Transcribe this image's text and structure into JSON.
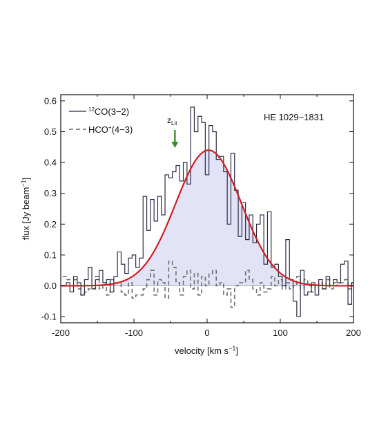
{
  "chart_data": {
    "type": "line",
    "object_label": "HE 1029−1831",
    "xlabel": "velocity [km s",
    "xlabel_sup": "−1",
    "xlabel_end": "]",
    "ylabel": "flux [Jy beam",
    "ylabel_sup": "−1",
    "ylabel_end": "]",
    "xlim": [
      -200,
      200
    ],
    "ylim": [
      -0.12,
      0.62
    ],
    "x_ticks": [
      -200,
      -100,
      0,
      100,
      200
    ],
    "x_tick_labels": [
      "-200",
      "-100",
      "0",
      "100",
      "200"
    ],
    "y_ticks": [
      -0.1,
      0.0,
      0.1,
      0.2,
      0.3,
      0.4,
      0.5,
      0.6
    ],
    "y_tick_labels": [
      "-0.1",
      "0.0",
      "0.1",
      "0.2",
      "0.3",
      "0.4",
      "0.5",
      "0.6"
    ],
    "legend": {
      "placement": "top-left",
      "co_label_sup": "12",
      "co_label": "CO(3−2)",
      "hco_label": "HCO",
      "hco_label_sup": "+",
      "hco_label_end": "(4−3)"
    },
    "annotation": {
      "label": "z",
      "label_sub": "Lit",
      "x": -44,
      "color": "#3d8b2f"
    },
    "colors": {
      "co": "#2a2a45",
      "hco": "#6e6e6e",
      "fit": "#cc1f1f",
      "fill": "#e2e3f6"
    },
    "series": [
      {
        "name": "12CO(3-2)",
        "style": "step-solid",
        "x": [
          -195,
          -190,
          -185,
          -180,
          -175,
          -170,
          -165,
          -160,
          -155,
          -150,
          -145,
          -140,
          -135,
          -130,
          -125,
          -120,
          -115,
          -110,
          -105,
          -100,
          -95,
          -90,
          -85,
          -80,
          -75,
          -70,
          -65,
          -60,
          -55,
          -50,
          -45,
          -40,
          -35,
          -30,
          -25,
          -20,
          -15,
          -10,
          -5,
          0,
          5,
          10,
          15,
          20,
          25,
          30,
          35,
          40,
          45,
          50,
          55,
          60,
          65,
          70,
          75,
          80,
          85,
          90,
          95,
          100,
          105,
          110,
          115,
          120,
          125,
          130,
          135,
          140,
          145,
          150,
          155,
          160,
          165,
          170,
          175,
          180,
          185,
          190,
          195,
          200
        ],
        "y": [
          0.0,
          0.01,
          -0.02,
          0.03,
          0.01,
          -0.03,
          0.02,
          0.06,
          -0.01,
          0.02,
          0.05,
          0.01,
          0.02,
          -0.02,
          0.03,
          0.11,
          0.07,
          0.04,
          0.09,
          0.1,
          0.06,
          0.09,
          0.29,
          0.18,
          0.28,
          0.21,
          0.29,
          0.23,
          0.36,
          0.35,
          0.37,
          0.39,
          0.34,
          0.4,
          0.33,
          0.58,
          0.5,
          0.55,
          0.53,
          0.36,
          0.52,
          0.5,
          0.41,
          0.42,
          0.37,
          0.2,
          0.43,
          0.31,
          0.16,
          0.27,
          0.15,
          0.23,
          0.14,
          0.2,
          0.23,
          0.07,
          0.24,
          0.06,
          0.07,
          0.03,
          0.0,
          0.15,
          0.02,
          -0.05,
          -0.1,
          0.05,
          -0.03,
          -0.02,
          0.01,
          -0.03,
          0.02,
          -0.01,
          0.03,
          0.0,
          0.02,
          0.01,
          0.07,
          0.08,
          -0.06,
          0.01
        ]
      },
      {
        "name": "HCO+(4-3)",
        "style": "step-dashed",
        "x": [
          -195,
          -190,
          -185,
          -180,
          -175,
          -170,
          -165,
          -160,
          -155,
          -150,
          -145,
          -140,
          -135,
          -130,
          -125,
          -120,
          -115,
          -110,
          -105,
          -100,
          -95,
          -90,
          -85,
          -80,
          -75,
          -70,
          -65,
          -60,
          -55,
          -50,
          -45,
          -40,
          -35,
          -30,
          -25,
          -20,
          -15,
          -10,
          -5,
          0,
          5,
          10,
          15,
          20,
          25,
          30,
          35,
          40,
          45,
          50,
          55,
          60,
          65,
          70,
          75,
          80,
          85,
          90,
          95,
          100,
          105,
          110,
          115,
          120,
          125,
          130,
          135,
          140,
          145,
          150,
          155,
          160,
          165,
          170,
          175,
          180,
          185,
          190,
          195,
          200
        ],
        "y": [
          0.03,
          0.02,
          0.02,
          0.02,
          -0.01,
          -0.03,
          -0.02,
          -0.01,
          -0.01,
          0.03,
          -0.01,
          0.01,
          -0.03,
          0.02,
          0.01,
          0.01,
          -0.02,
          -0.03,
          0.01,
          -0.04,
          -0.03,
          -0.03,
          -0.01,
          0.02,
          0.05,
          -0.03,
          0.02,
          0.01,
          -0.04,
          0.08,
          0.06,
          0.01,
          -0.03,
          0.03,
          0.05,
          -0.01,
          0.04,
          -0.03,
          0.03,
          0.0,
          0.04,
          0.05,
          0.0,
          0.01,
          -0.03,
          -0.01,
          -0.07,
          0.0,
          0.01,
          0.01,
          0.05,
          0.02,
          -0.01,
          -0.03,
          0.01,
          -0.02,
          -0.01,
          0.03,
          0.0,
          0.02,
          -0.01,
          0.01,
          -0.01,
          0.0,
          0.03,
          -0.01,
          0.02,
          0.0,
          -0.02,
          0.0,
          0.01,
          -0.01,
          0.02,
          -0.01,
          0.01,
          0.0,
          0.01,
          0.02,
          -0.01,
          0.01
        ]
      },
      {
        "name": "Gaussian fit",
        "style": "smooth-solid",
        "amplitude": 0.44,
        "center": 2,
        "sigma": 45
      }
    ]
  }
}
